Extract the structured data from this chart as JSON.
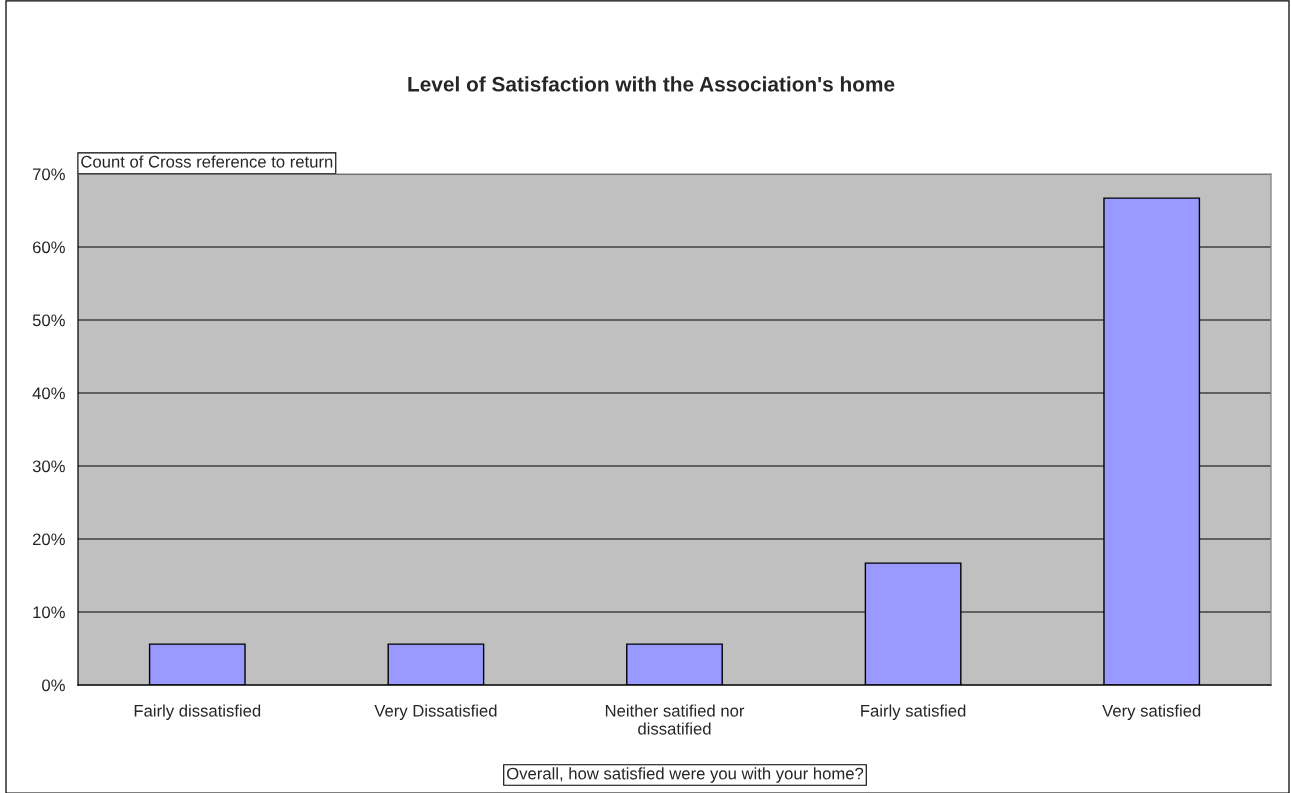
{
  "chart_data": {
    "type": "bar",
    "title": "Level of Satisfaction with the Association's home",
    "xlabel": "Overall, how satisfied were you with your home?",
    "ylabel": "Count of Cross reference to return",
    "categories": [
      "Fairly dissatisfied",
      "Very Dissatisfied",
      "Neither satified nor dissatified",
      "Fairly satisfied",
      "Very satisfied"
    ],
    "values": [
      5.6,
      5.6,
      5.6,
      16.7,
      66.7
    ],
    "color": "#9999ff",
    "ylim": [
      0,
      70
    ],
    "yticks": [
      {
        "value": 0,
        "label": "0%"
      },
      {
        "value": 10,
        "label": "10%"
      },
      {
        "value": 20,
        "label": "20%"
      },
      {
        "value": 30,
        "label": "30%"
      },
      {
        "value": 40,
        "label": "40%"
      },
      {
        "value": 50,
        "label": "50%"
      },
      {
        "value": 60,
        "label": "60%"
      },
      {
        "value": 70,
        "label": "70%"
      }
    ],
    "grid": "y"
  }
}
